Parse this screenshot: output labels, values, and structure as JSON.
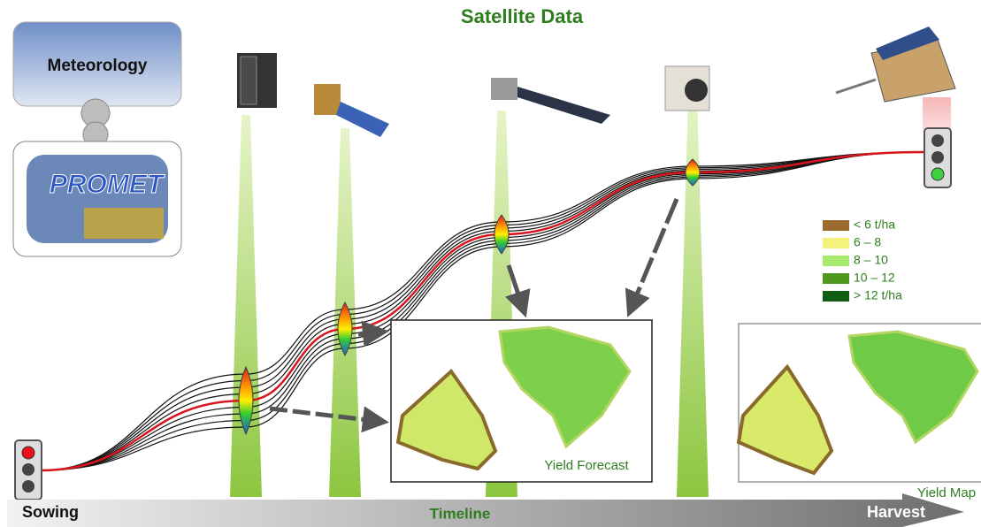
{
  "title": "Satellite Data",
  "meteorology": "Meteorology",
  "promet": "PROMET",
  "legend": [
    {
      "label": "< 6 t/ha",
      "color": "#9b6a2f"
    },
    {
      "label": "6 – 8",
      "color": "#f4f27a"
    },
    {
      "label": "8 – 10",
      "color": "#a6ea6e"
    },
    {
      "label": "10 – 12",
      "color": "#4f9a1e"
    },
    {
      "label": "> 12 t/ha",
      "color": "#0f5e12"
    }
  ],
  "yield_forecast": "Yield Forecast",
  "yield_map": "Yield Map",
  "timeline": {
    "start": "Sowing",
    "label": "Timeline",
    "end": "Harvest"
  }
}
